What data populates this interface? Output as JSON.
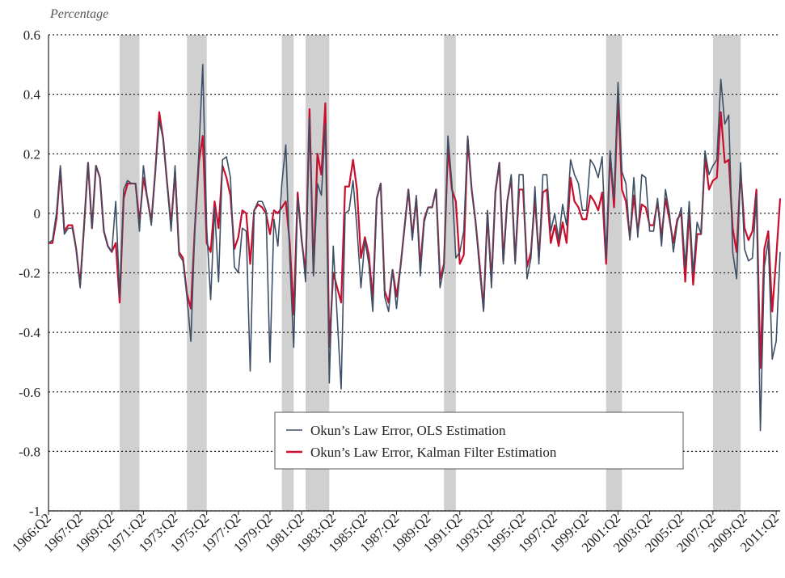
{
  "chart_data": {
    "type": "line",
    "ylabel": "Percentage",
    "ylim": [
      -1,
      0.6
    ],
    "yticks": [
      -1,
      -0.8,
      -0.6,
      -0.4,
      -0.2,
      0,
      0.2,
      0.4,
      0.6
    ],
    "grid": true,
    "legend": "bottom-center",
    "recessions": [
      [
        18,
        23
      ],
      [
        35,
        40
      ],
      [
        59,
        62
      ],
      [
        65,
        71
      ],
      [
        100,
        103
      ],
      [
        141,
        145
      ],
      [
        168,
        175
      ]
    ],
    "recession_color": "#d0d0d0",
    "categories": [
      "1966:Q2",
      null,
      null,
      null,
      null,
      null,
      null,
      null,
      "1967:Q2",
      null,
      null,
      null,
      null,
      null,
      null,
      null,
      "1969:Q2",
      null,
      null,
      null,
      null,
      null,
      null,
      null,
      "1971:Q2",
      null,
      null,
      null,
      null,
      null,
      null,
      null,
      "1973:Q2",
      null,
      null,
      null,
      null,
      null,
      null,
      null,
      "1975:Q2",
      null,
      null,
      null,
      null,
      null,
      null,
      null,
      "1977:Q2",
      null,
      null,
      null,
      null,
      null,
      null,
      null,
      "1979:Q2",
      null,
      null,
      null,
      null,
      null,
      null,
      null,
      "1981:Q2",
      null,
      null,
      null,
      null,
      null,
      null,
      null,
      "1983:Q2",
      null,
      null,
      null,
      null,
      null,
      null,
      null,
      "1985:Q2",
      null,
      null,
      null,
      null,
      null,
      null,
      null,
      "1987:Q2",
      null,
      null,
      null,
      null,
      null,
      null,
      null,
      "1989:Q2",
      null,
      null,
      null,
      null,
      null,
      null,
      null,
      "1991:Q2",
      null,
      null,
      null,
      null,
      null,
      null,
      null,
      "1993:Q2",
      null,
      null,
      null,
      null,
      null,
      null,
      null,
      "1995:Q2",
      null,
      null,
      null,
      null,
      null,
      null,
      null,
      "1997:Q2",
      null,
      null,
      null,
      null,
      null,
      null,
      null,
      "1999:Q2",
      null,
      null,
      null,
      null,
      null,
      null,
      null,
      "2001:Q2",
      null,
      null,
      null,
      null,
      null,
      null,
      null,
      "2003:Q2",
      null,
      null,
      null,
      null,
      null,
      null,
      null,
      "2005:Q2",
      null,
      null,
      null,
      null,
      null,
      null,
      null,
      "2007:Q2",
      null,
      null,
      null,
      null,
      null,
      null,
      null,
      "2009:Q2",
      null,
      null,
      null,
      null,
      null,
      null,
      null,
      "2011:Q2",
      null
    ],
    "series": [
      {
        "name": "Okun’s Law Error, OLS Estimation",
        "color": "#3d4f66",
        "values": [
          -0.1,
          -0.09,
          0.0,
          0.16,
          -0.07,
          -0.05,
          -0.05,
          -0.12,
          -0.25,
          -0.05,
          0.17,
          -0.05,
          0.16,
          0.12,
          -0.06,
          -0.11,
          -0.13,
          0.04,
          -0.28,
          0.08,
          0.11,
          0.1,
          0.1,
          -0.06,
          0.16,
          0.05,
          -0.04,
          0.14,
          0.31,
          0.25,
          0.1,
          -0.06,
          0.16,
          -0.14,
          -0.16,
          -0.28,
          -0.43,
          -0.05,
          0.2,
          0.5,
          -0.05,
          -0.29,
          0.02,
          -0.23,
          0.18,
          0.19,
          0.12,
          -0.18,
          -0.2,
          -0.05,
          -0.06,
          -0.53,
          0.01,
          0.04,
          0.04,
          0.01,
          -0.5,
          -0.02,
          -0.11,
          0.1,
          0.23,
          -0.15,
          -0.45,
          0.05,
          -0.08,
          -0.23,
          0.32,
          -0.21,
          0.1,
          0.06,
          0.3,
          -0.57,
          -0.11,
          -0.35,
          -0.59,
          0.0,
          0.01,
          0.11,
          -0.05,
          -0.25,
          -0.09,
          -0.17,
          -0.33,
          0.05,
          0.1,
          -0.28,
          -0.33,
          -0.19,
          -0.32,
          -0.18,
          -0.05,
          0.08,
          -0.09,
          0.06,
          -0.21,
          -0.03,
          0.02,
          0.02,
          0.08,
          -0.25,
          -0.18,
          0.26,
          0.1,
          -0.15,
          -0.13,
          -0.06,
          0.26,
          0.08,
          -0.03,
          -0.19,
          -0.33,
          0.01,
          -0.25,
          0.08,
          0.17,
          -0.17,
          0.04,
          0.13,
          -0.17,
          0.13,
          0.13,
          -0.22,
          -0.15,
          0.09,
          -0.17,
          0.13,
          0.13,
          -0.06,
          0.0,
          -0.09,
          0.03,
          -0.04,
          0.18,
          0.13,
          0.1,
          0.01,
          0.01,
          0.18,
          0.16,
          0.12,
          0.19,
          -0.15,
          0.21,
          0.05,
          0.44,
          0.14,
          0.1,
          -0.09,
          0.12,
          -0.08,
          0.13,
          0.12,
          -0.06,
          -0.06,
          0.05,
          -0.11,
          0.08,
          0.0,
          -0.13,
          -0.03,
          0.02,
          -0.18,
          0.04,
          -0.2,
          -0.03,
          -0.07,
          0.21,
          0.13,
          0.16,
          0.18,
          0.45,
          0.3,
          0.33,
          -0.13,
          -0.22,
          0.17,
          -0.12,
          -0.16,
          -0.15,
          0.06,
          -0.73,
          -0.18,
          -0.09,
          -0.49,
          -0.43,
          -0.13
        ]
      },
      {
        "name": "Okun’s Law Error, Kalman Filter Estimation",
        "color": "#c8102e",
        "values": [
          -0.1,
          -0.1,
          -0.02,
          0.15,
          -0.06,
          -0.04,
          -0.04,
          -0.12,
          -0.24,
          -0.04,
          0.17,
          -0.05,
          0.16,
          0.12,
          -0.06,
          -0.11,
          -0.13,
          -0.1,
          -0.3,
          0.05,
          0.1,
          0.1,
          0.1,
          -0.03,
          0.12,
          0.05,
          -0.03,
          0.14,
          0.34,
          0.25,
          0.1,
          -0.04,
          0.14,
          -0.13,
          -0.15,
          -0.27,
          -0.32,
          -0.05,
          0.17,
          0.26,
          -0.1,
          -0.13,
          0.04,
          -0.05,
          0.16,
          0.12,
          0.06,
          -0.12,
          -0.08,
          0.01,
          0.0,
          -0.17,
          0.01,
          0.03,
          0.02,
          0.0,
          -0.07,
          0.01,
          0.0,
          0.02,
          0.04,
          -0.1,
          -0.34,
          0.07,
          -0.09,
          -0.2,
          0.35,
          -0.2,
          0.2,
          0.13,
          0.37,
          -0.45,
          -0.2,
          -0.25,
          -0.3,
          0.09,
          0.09,
          0.18,
          0.08,
          -0.15,
          -0.08,
          -0.14,
          -0.29,
          0.05,
          0.1,
          -0.26,
          -0.3,
          -0.19,
          -0.28,
          -0.18,
          -0.05,
          0.08,
          -0.08,
          0.05,
          -0.18,
          -0.02,
          0.02,
          0.02,
          0.08,
          -0.22,
          -0.17,
          0.22,
          0.08,
          0.04,
          -0.17,
          -0.14,
          0.25,
          0.08,
          -0.03,
          -0.17,
          -0.32,
          0.0,
          -0.23,
          0.07,
          0.17,
          -0.16,
          0.04,
          0.12,
          -0.16,
          0.08,
          0.08,
          -0.18,
          -0.13,
          0.05,
          -0.15,
          0.07,
          0.08,
          -0.1,
          -0.04,
          -0.11,
          -0.03,
          -0.1,
          0.12,
          0.04,
          0.02,
          -0.02,
          -0.02,
          0.06,
          0.04,
          0.01,
          0.07,
          -0.17,
          0.2,
          0.02,
          0.4,
          0.08,
          0.04,
          -0.08,
          0.06,
          -0.06,
          0.03,
          0.02,
          -0.04,
          -0.04,
          0.04,
          -0.08,
          0.05,
          -0.02,
          -0.1,
          -0.02,
          0.0,
          -0.23,
          0.01,
          -0.24,
          -0.07,
          -0.07,
          0.19,
          0.08,
          0.11,
          0.12,
          0.34,
          0.17,
          0.18,
          -0.05,
          -0.13,
          0.14,
          -0.05,
          -0.09,
          -0.06,
          0.08,
          -0.52,
          -0.12,
          -0.06,
          -0.33,
          -0.15,
          0.05
        ]
      }
    ]
  }
}
